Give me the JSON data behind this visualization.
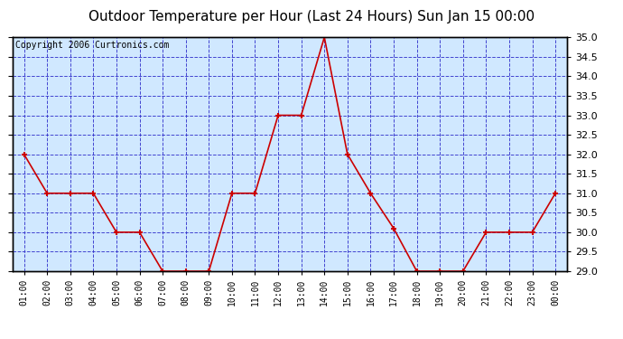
{
  "title": "Outdoor Temperature per Hour (Last 24 Hours) Sun Jan 15 00:00",
  "copyright": "Copyright 2006 Curtronics.com",
  "hours": [
    "01:00",
    "02:00",
    "03:00",
    "04:00",
    "05:00",
    "06:00",
    "07:00",
    "08:00",
    "09:00",
    "10:00",
    "11:00",
    "12:00",
    "13:00",
    "14:00",
    "15:00",
    "16:00",
    "17:00",
    "18:00",
    "19:00",
    "20:00",
    "21:00",
    "22:00",
    "23:00",
    "00:00"
  ],
  "temps": [
    32.0,
    31.0,
    31.0,
    31.0,
    30.0,
    30.0,
    29.0,
    29.0,
    29.0,
    31.0,
    31.0,
    33.0,
    33.0,
    35.0,
    32.0,
    31.0,
    30.1,
    29.0,
    29.0,
    29.0,
    30.0,
    30.0,
    30.0,
    31.0
  ],
  "ylim": [
    29.0,
    35.0
  ],
  "ytick_step": 0.5,
  "line_color": "#cc0000",
  "marker_color": "#cc0000",
  "bg_color": "#d0e8ff",
  "grid_color": "#3333cc",
  "border_color": "#000000",
  "title_fontsize": 11,
  "copyright_fontsize": 7,
  "fig_bg": "#ffffff"
}
